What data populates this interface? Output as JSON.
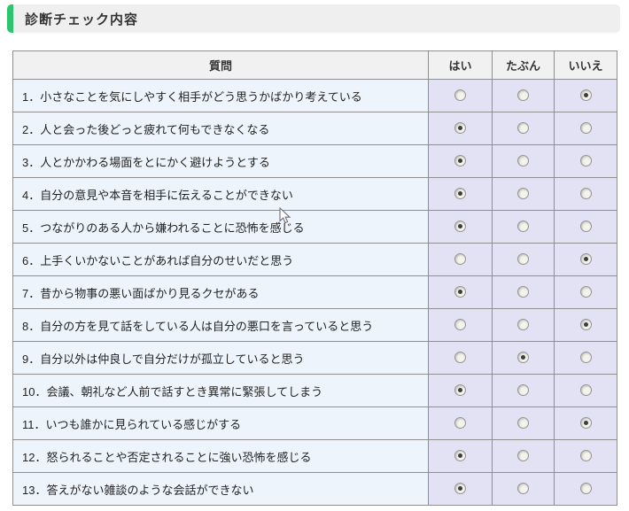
{
  "page": {
    "title": "診断チェック内容"
  },
  "colors": {
    "accent_green": "#2dc46e",
    "header_bar_bg": "#f0efef",
    "table_header_bg": "#f2f1f1",
    "question_cell_bg": "#eef4fc",
    "answer_cell_bg": "#e3e2f5",
    "table_border": "#8f8f8f",
    "text": "#333333"
  },
  "table": {
    "question_header": "質問",
    "options": [
      {
        "key": "yes",
        "label": "はい"
      },
      {
        "key": "maybe",
        "label": "たぶん"
      },
      {
        "key": "no",
        "label": "いいえ"
      }
    ],
    "rows": [
      {
        "question": "1．小さなことを気にしやすく相手がどう思うかばかり考えている",
        "selected": "no"
      },
      {
        "question": "2．人と会った後どっと疲れて何もできなくなる",
        "selected": "yes"
      },
      {
        "question": "3．人とかかわる場面をとにかく避けようとする",
        "selected": "yes"
      },
      {
        "question": "4．自分の意見や本音を相手に伝えることができない",
        "selected": "yes"
      },
      {
        "question": "5．つながりのある人から嫌われることに恐怖を感じる",
        "selected": "yes"
      },
      {
        "question": "6．上手くいかないことがあれば自分のせいだと思う",
        "selected": "no"
      },
      {
        "question": "7．昔から物事の悪い面ばかり見るクセがある",
        "selected": "yes"
      },
      {
        "question": "8．自分の方を見て話をしている人は自分の悪口を言っていると思う",
        "selected": "no"
      },
      {
        "question": "9．自分以外は仲良しで自分だけが孤立していると思う",
        "selected": "maybe"
      },
      {
        "question": "10．会議、朝礼など人前で話すとき異常に緊張してしまう",
        "selected": "yes"
      },
      {
        "question": "11．いつも誰かに見られている感じがする",
        "selected": "no"
      },
      {
        "question": "12．怒られることや否定されることに強い恐怖を感じる",
        "selected": "yes"
      },
      {
        "question": "13．答えがない雑談のような会話ができない",
        "selected": "yes"
      }
    ]
  }
}
